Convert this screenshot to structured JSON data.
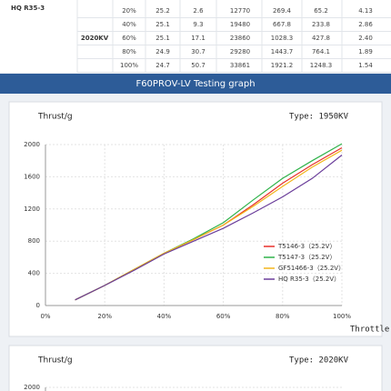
{
  "table": {
    "left_label": "HQ R35-3",
    "group_label": "2020KV",
    "rows": [
      [
        "20%",
        "25.2",
        "2.6",
        "12770",
        "269.4",
        "65.2",
        "4.13"
      ],
      [
        "40%",
        "25.1",
        "9.3",
        "19480",
        "667.8",
        "233.8",
        "2.86"
      ],
      [
        "60%",
        "25.1",
        "17.1",
        "23860",
        "1028.3",
        "427.8",
        "2.40"
      ],
      [
        "80%",
        "24.9",
        "30.7",
        "29280",
        "1443.7",
        "764.1",
        "1.89"
      ],
      [
        "100%",
        "24.7",
        "50.7",
        "33861",
        "1921.2",
        "1248.3",
        "1.54"
      ]
    ]
  },
  "banner": "F60PROV-LV Testing graph",
  "chart_data": [
    {
      "type": "line",
      "ylabel": "Thrust/g",
      "title": "Type: 1950KV",
      "xlabel": "Throttle",
      "x": [
        10,
        20,
        30,
        40,
        50,
        60,
        70,
        80,
        90,
        100
      ],
      "xlim": [
        0,
        100
      ],
      "xticks": [
        {
          "value": 0,
          "label": "0%"
        },
        {
          "value": 20,
          "label": "20%"
        },
        {
          "value": 40,
          "label": "40%"
        },
        {
          "value": 60,
          "label": "60%"
        },
        {
          "value": 80,
          "label": "80%"
        },
        {
          "value": 100,
          "label": "100%"
        }
      ],
      "ylim": [
        0,
        2000
      ],
      "yticks": [
        0,
        400,
        800,
        1200,
        1600,
        2000
      ],
      "grid": true,
      "series": [
        {
          "name": "T5146-3（25.2V）",
          "color": "#e8302a",
          "values": [
            70,
            250,
            450,
            650,
            820,
            1000,
            1250,
            1520,
            1750,
            1960
          ]
        },
        {
          "name": "T5147-3（25.2V）",
          "color": "#2fb34a",
          "values": [
            70,
            250,
            450,
            650,
            830,
            1030,
            1310,
            1580,
            1800,
            2010
          ]
        },
        {
          "name": "GF51466-3（25.2V）",
          "color": "#f2b51c",
          "values": [
            70,
            250,
            450,
            650,
            820,
            1000,
            1230,
            1480,
            1720,
            1930
          ]
        },
        {
          "name": "HQ R35-3（25.2V）",
          "color": "#6a3d9a",
          "values": [
            70,
            250,
            440,
            640,
            800,
            960,
            1150,
            1350,
            1580,
            1870
          ]
        }
      ]
    },
    {
      "type": "line",
      "ylabel": "Thrust/g",
      "title": "Type: 2020KV",
      "ylim": [
        0,
        2000
      ],
      "yticks": [
        2000
      ],
      "grid": true
    }
  ]
}
